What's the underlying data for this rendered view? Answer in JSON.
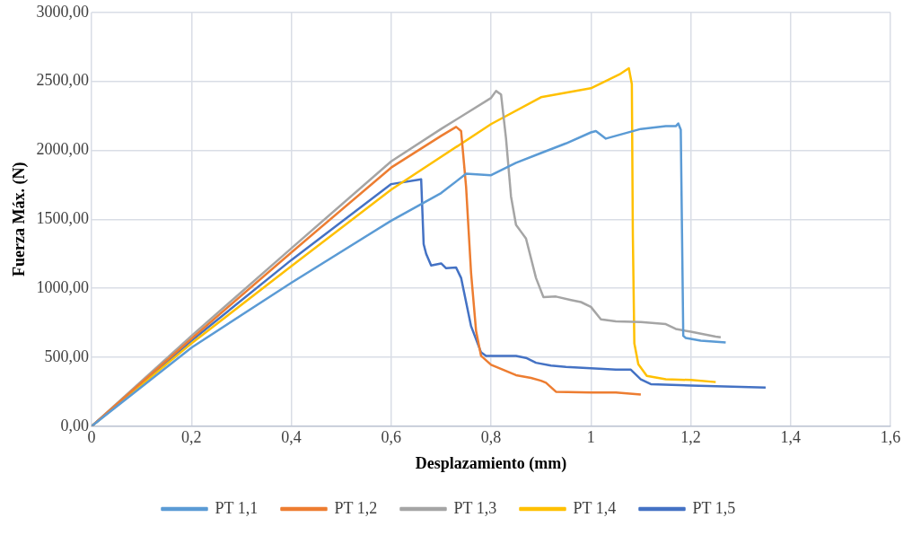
{
  "chart_data": {
    "type": "line",
    "xlabel": "Desplazamiento (mm)",
    "ylabel": "Fuerza Máx. (N)",
    "xlim": [
      0,
      1.6
    ],
    "ylim": [
      0,
      3000
    ],
    "xticks": [
      0,
      {
        "value": 0.2,
        "label": "0,2"
      },
      {
        "value": 0.4,
        "label": "0,4"
      },
      {
        "value": 0.6,
        "label": "0,6"
      },
      {
        "value": 0.8,
        "label": "0,8"
      },
      1,
      {
        "value": 1.2,
        "label": "1,2"
      },
      {
        "value": 1.4,
        "label": "1,4"
      },
      {
        "value": 1.6,
        "label": "1,6"
      }
    ],
    "yticks": [
      {
        "value": 0,
        "label": "0,00"
      },
      {
        "value": 500,
        "label": "500,00"
      },
      {
        "value": 1000,
        "label": "1000,00"
      },
      {
        "value": 1500,
        "label": "1500,00"
      },
      {
        "value": 2000,
        "label": "2000,00"
      },
      {
        "value": 2500,
        "label": "2500,00"
      },
      {
        "value": 3000,
        "label": "3000,00"
      }
    ],
    "grid": true,
    "legend": "bottom",
    "marker": "none",
    "line_style": "solid",
    "series": [
      {
        "name": "PT 1,1",
        "color": "#5b9bd5",
        "x": [
          0,
          0.2,
          0.4,
          0.6,
          0.7,
          0.75,
          0.8,
          0.85,
          0.9,
          0.95,
          1.0,
          1.01,
          1.03,
          1.1,
          1.15,
          1.17,
          1.175,
          1.18,
          1.185,
          1.19,
          1.22,
          1.27
        ],
        "values": [
          0,
          570,
          1040,
          1490,
          1690,
          1830,
          1820,
          1910,
          1980,
          2050,
          2130,
          2140,
          2085,
          2155,
          2175,
          2175,
          2195,
          2150,
          655,
          640,
          620,
          607
        ]
      },
      {
        "name": "PT 1,2",
        "color": "#ed7d31",
        "x": [
          0,
          0.2,
          0.4,
          0.6,
          0.7,
          0.73,
          0.74,
          0.75,
          0.76,
          0.77,
          0.78,
          0.8,
          0.85,
          0.88,
          0.9,
          0.91,
          0.93,
          1.0,
          1.05,
          1.1
        ],
        "values": [
          0,
          635,
          1260,
          1875,
          2105,
          2170,
          2140,
          1735,
          1110,
          690,
          510,
          445,
          370,
          350,
          330,
          315,
          250,
          245,
          245,
          230
        ]
      },
      {
        "name": "PT 1,3",
        "color": "#a5a5a5",
        "x": [
          0,
          0.2,
          0.4,
          0.6,
          0.7,
          0.8,
          0.81,
          0.82,
          0.83,
          0.84,
          0.85,
          0.86,
          0.87,
          0.89,
          0.905,
          0.93,
          0.96,
          0.98,
          1.0,
          1.02,
          1.05,
          1.1,
          1.15,
          1.17,
          1.2,
          1.25,
          1.26
        ],
        "values": [
          0,
          655,
          1290,
          1920,
          2155,
          2380,
          2430,
          2405,
          2085,
          1665,
          1460,
          1410,
          1360,
          1075,
          935,
          940,
          915,
          900,
          865,
          775,
          760,
          755,
          740,
          705,
          685,
          650,
          645
        ]
      },
      {
        "name": "PT 1,4",
        "color": "#ffc000",
        "x": [
          0,
          0.2,
          0.4,
          0.6,
          0.8,
          0.9,
          1.0,
          1.057,
          1.076,
          1.082,
          1.084,
          1.087,
          1.095,
          1.112,
          1.15,
          1.2,
          1.25
        ],
        "values": [
          0,
          600,
          1160,
          1715,
          2190,
          2385,
          2450,
          2550,
          2595,
          2480,
          1390,
          600,
          450,
          365,
          340,
          335,
          320
        ]
      },
      {
        "name": "PT 1,5",
        "color": "#4472c4",
        "x": [
          0,
          0.2,
          0.4,
          0.6,
          0.66,
          0.665,
          0.67,
          0.68,
          0.7,
          0.71,
          0.73,
          0.74,
          0.76,
          0.78,
          0.79,
          0.85,
          0.87,
          0.89,
          0.92,
          0.95,
          1.0,
          1.05,
          1.08,
          1.1,
          1.12,
          1.2,
          1.3,
          1.35
        ],
        "values": [
          0,
          620,
          1205,
          1755,
          1790,
          1320,
          1250,
          1165,
          1180,
          1145,
          1150,
          1075,
          725,
          535,
          510,
          510,
          495,
          460,
          440,
          430,
          420,
          410,
          410,
          340,
          305,
          295,
          285,
          280
        ]
      }
    ]
  }
}
